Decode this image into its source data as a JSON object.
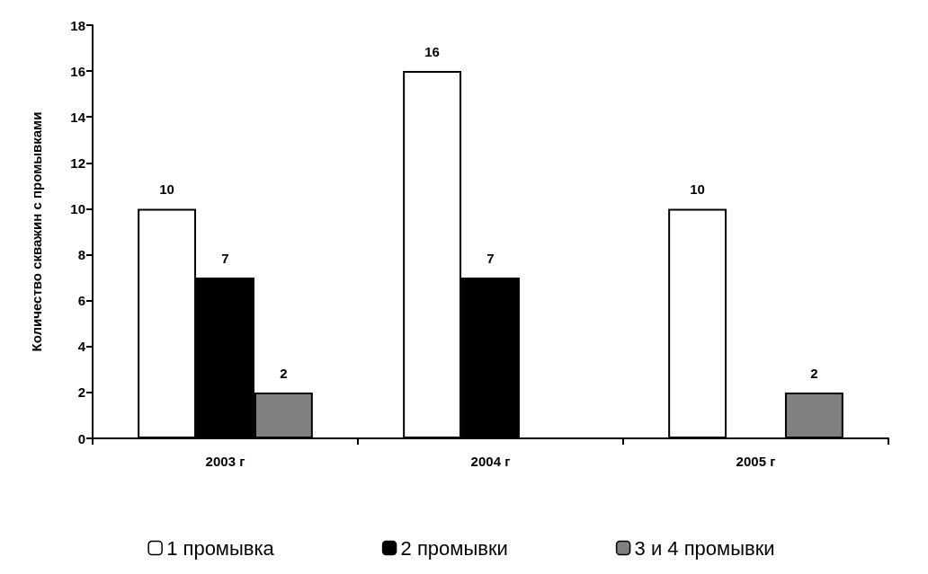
{
  "chart_data": {
    "type": "bar",
    "ylabel": "Количество скважин с промывками",
    "categories": [
      "2003 г",
      "2004 г",
      "2005 г"
    ],
    "series": [
      {
        "name": "1 промывка",
        "color": "#ffffff",
        "values": [
          10,
          16,
          10
        ]
      },
      {
        "name": "2 промывки",
        "color": "#000000",
        "values": [
          7,
          7,
          null
        ]
      },
      {
        "name": "3 и 4 промывки",
        "color": "#808080",
        "values": [
          2,
          null,
          2
        ]
      }
    ],
    "ylim": [
      0,
      18
    ],
    "yticks": [
      0,
      2,
      4,
      6,
      8,
      10,
      12,
      14,
      16,
      18
    ],
    "grid": false,
    "legend": "bottom",
    "data_labels": true
  }
}
